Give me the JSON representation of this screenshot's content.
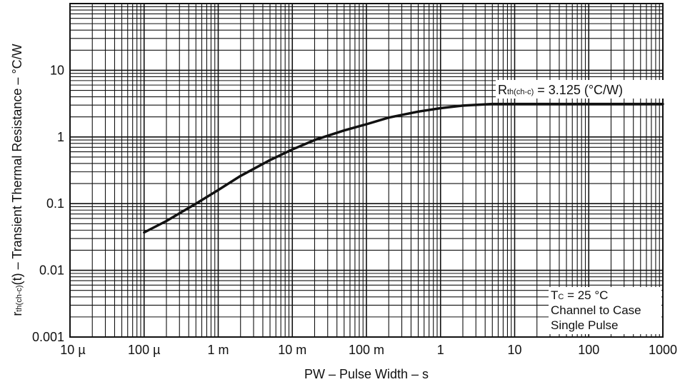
{
  "chart_data": {
    "type": "line",
    "title": "",
    "xlabel": "PW – Pulse Width – s",
    "ylabel_main": "r",
    "ylabel_sub": "th(ch-c)",
    "ylabel_rest": "(t) – Transient Thermal Resistance – °C/W",
    "x_scale": "log",
    "y_scale": "log",
    "xlim": [
      1e-05,
      1000
    ],
    "ylim": [
      0.001,
      100
    ],
    "grid": true,
    "x_ticks": [
      {
        "value": 1e-05,
        "label": "10 µ"
      },
      {
        "value": 0.0001,
        "label": "100 µ"
      },
      {
        "value": 0.001,
        "label": "1 m"
      },
      {
        "value": 0.01,
        "label": "10 m"
      },
      {
        "value": 0.1,
        "label": "100 m"
      },
      {
        "value": 1,
        "label": "1"
      },
      {
        "value": 10,
        "label": "10"
      },
      {
        "value": 100,
        "label": "100"
      },
      {
        "value": 1000,
        "label": "1000"
      }
    ],
    "y_ticks": [
      {
        "value": 0.001,
        "label": "0.001"
      },
      {
        "value": 0.01,
        "label": "0.01"
      },
      {
        "value": 0.1,
        "label": "0.1"
      },
      {
        "value": 1,
        "label": "1"
      },
      {
        "value": 10,
        "label": "10"
      }
    ],
    "series": [
      {
        "x": [
          0.0001,
          0.0002,
          0.0005,
          0.001,
          0.002,
          0.005,
          0.01,
          0.02,
          0.05,
          0.1,
          0.2,
          0.5,
          1,
          2,
          5,
          10,
          100,
          1000
        ],
        "y": [
          0.037,
          0.055,
          0.1,
          0.16,
          0.26,
          0.45,
          0.65,
          0.9,
          1.25,
          1.55,
          1.95,
          2.4,
          2.7,
          2.95,
          3.125,
          3.125,
          3.125,
          3.125
        ]
      }
    ],
    "annotations": {
      "rth_main": "R",
      "rth_sub": "th(ch-c)",
      "rth_rest": " = 3.125 (°C/W)",
      "conditions_tc_main": "T",
      "conditions_tc_sub": "C",
      "conditions_tc_rest": " = 25 °C",
      "conditions_line2": "Channel to Case",
      "conditions_line3": "Single Pulse"
    }
  }
}
